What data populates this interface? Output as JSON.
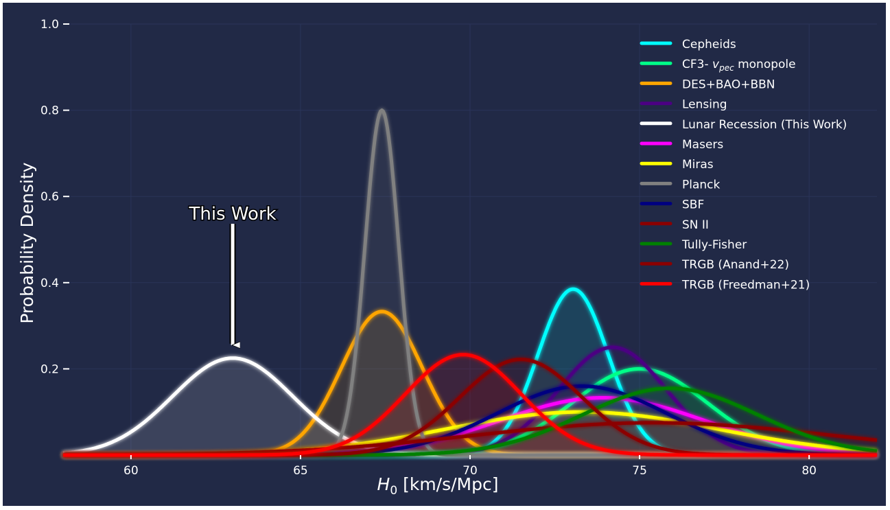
{
  "chart_data": {
    "type": "line",
    "title": "",
    "xlabel_main": "H",
    "xlabel_sub": "0",
    "xlabel_rest": " [km/s/Mpc]",
    "ylabel": "Probability Density",
    "xlim": [
      58,
      82
    ],
    "ylim": [
      0.0,
      1.0
    ],
    "x_ticks": [
      60,
      65,
      70,
      75,
      80
    ],
    "y_ticks": [
      0.2,
      0.4,
      0.6,
      0.8,
      1.0
    ],
    "x_tick_labels": [
      "60",
      "65",
      "70",
      "75",
      "80"
    ],
    "y_tick_labels": [
      "0.2",
      "0.4",
      "0.6",
      "0.8",
      "1.0"
    ],
    "grid": true,
    "legend_position": "top-right",
    "annotation": {
      "text": "This Work",
      "x": 63.0,
      "y": 0.225
    },
    "series": [
      {
        "name": "Cepheids",
        "mean": 73.04,
        "peak": 0.385,
        "color": "#00ffff"
      },
      {
        "name_prefix": "CF3- ",
        "name_math": "v",
        "name_sub": "pec",
        "name_suffix": " monopole",
        "mean": 75.0,
        "peak": 0.2,
        "color": "#00ff88"
      },
      {
        "name": "DES+BAO+BBN",
        "mean": 67.4,
        "peak": 0.333,
        "color": "#ffa500"
      },
      {
        "name": "Lensing",
        "mean": 74.2,
        "peak": 0.25,
        "color": "#4b0082"
      },
      {
        "name": "Lunar Recession (This Work)",
        "mean": 63.0,
        "peak": 0.225,
        "color": "#ffffff"
      },
      {
        "name": "Masers",
        "mean": 73.9,
        "peak": 0.133,
        "color": "#ff00ff"
      },
      {
        "name": "Miras",
        "mean": 73.3,
        "peak": 0.1,
        "color": "#ffff00"
      },
      {
        "name": "Planck",
        "mean": 67.4,
        "peak": 0.8,
        "color": "#808080"
      },
      {
        "name": "SBF",
        "mean": 73.3,
        "peak": 0.16,
        "color": "#000080"
      },
      {
        "name": "SN II",
        "mean": 75.4,
        "peak": 0.075,
        "color": "#8b0000"
      },
      {
        "name": "Tully-Fisher",
        "mean": 75.9,
        "peak": 0.155,
        "color": "#008000"
      },
      {
        "name": "TRGB (Anand+22)",
        "mean": 71.5,
        "peak": 0.222,
        "color": "#8b0000"
      },
      {
        "name": "TRGB (Freedman+21)",
        "mean": 69.8,
        "peak": 0.233,
        "color": "#ff0000"
      }
    ]
  }
}
